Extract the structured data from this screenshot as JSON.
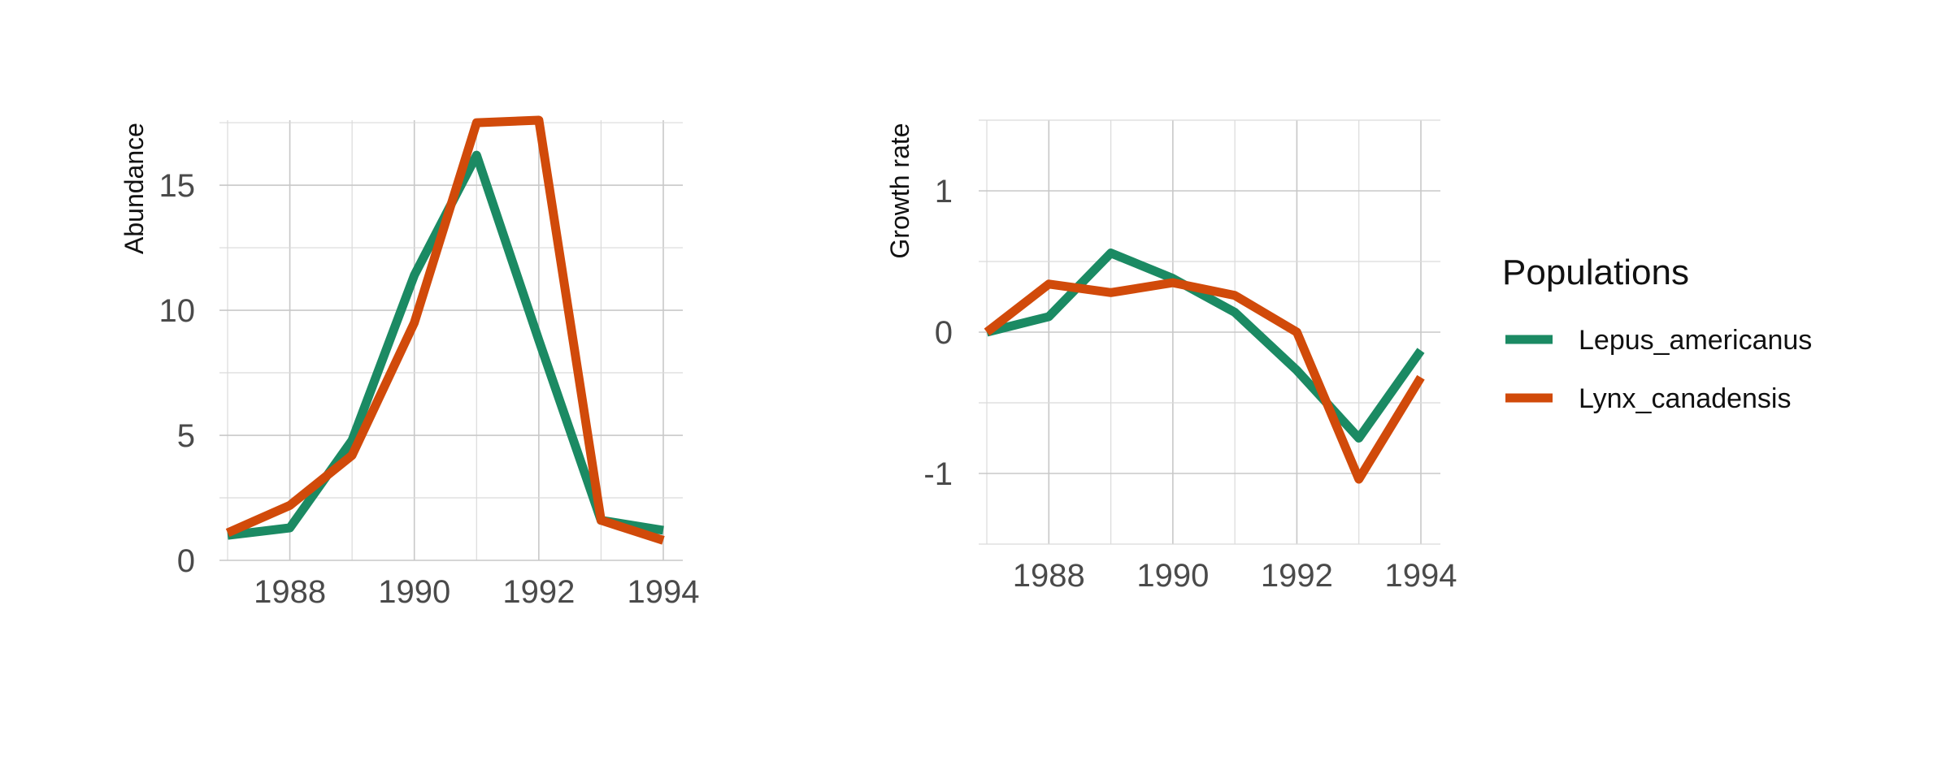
{
  "chart_data": [
    {
      "type": "line",
      "ylabel": "Abundance",
      "xlabel": "",
      "xlim": [
        1987,
        1994
      ],
      "ylim": [
        0,
        17.6
      ],
      "x_ticks": [
        1988,
        1990,
        1992,
        1994
      ],
      "y_ticks": [
        0,
        5,
        10,
        15
      ],
      "grid": true,
      "x": [
        1987,
        1988,
        1989,
        1990,
        1991,
        1992,
        1993,
        1994
      ],
      "series": [
        {
          "name": "Lepus_americanus",
          "color": "#1b8a63",
          "values": [
            1.0,
            1.3,
            4.8,
            11.4,
            16.2,
            8.8,
            1.6,
            1.2
          ]
        },
        {
          "name": "Lynx_canadensis",
          "color": "#d14a0a",
          "values": [
            1.1,
            2.2,
            4.2,
            9.5,
            17.5,
            17.6,
            1.6,
            0.8
          ]
        }
      ]
    },
    {
      "type": "line",
      "ylabel": "Growth rate",
      "xlabel": "",
      "xlim": [
        1987,
        1994
      ],
      "ylim": [
        -1.5,
        1.5
      ],
      "x_ticks": [
        1988,
        1990,
        1992,
        1994
      ],
      "y_ticks": [
        -1,
        0,
        1
      ],
      "grid": true,
      "x": [
        1987,
        1988,
        1989,
        1990,
        1991,
        1992,
        1993,
        1994
      ],
      "series": [
        {
          "name": "Lepus_americanus",
          "color": "#1b8a63",
          "values": [
            0.0,
            0.11,
            0.56,
            0.38,
            0.14,
            -0.27,
            -0.75,
            -0.13
          ]
        },
        {
          "name": "Lynx_canadensis",
          "color": "#d14a0a",
          "values": [
            0.0,
            0.34,
            0.28,
            0.35,
            0.26,
            0.0,
            -1.04,
            -0.32
          ]
        }
      ]
    }
  ],
  "legend": {
    "title": "Populations",
    "placement": "right",
    "items": [
      {
        "label": "Lepus_americanus",
        "color": "#1b8a63"
      },
      {
        "label": "Lynx_canadensis",
        "color": "#d14a0a"
      }
    ]
  }
}
